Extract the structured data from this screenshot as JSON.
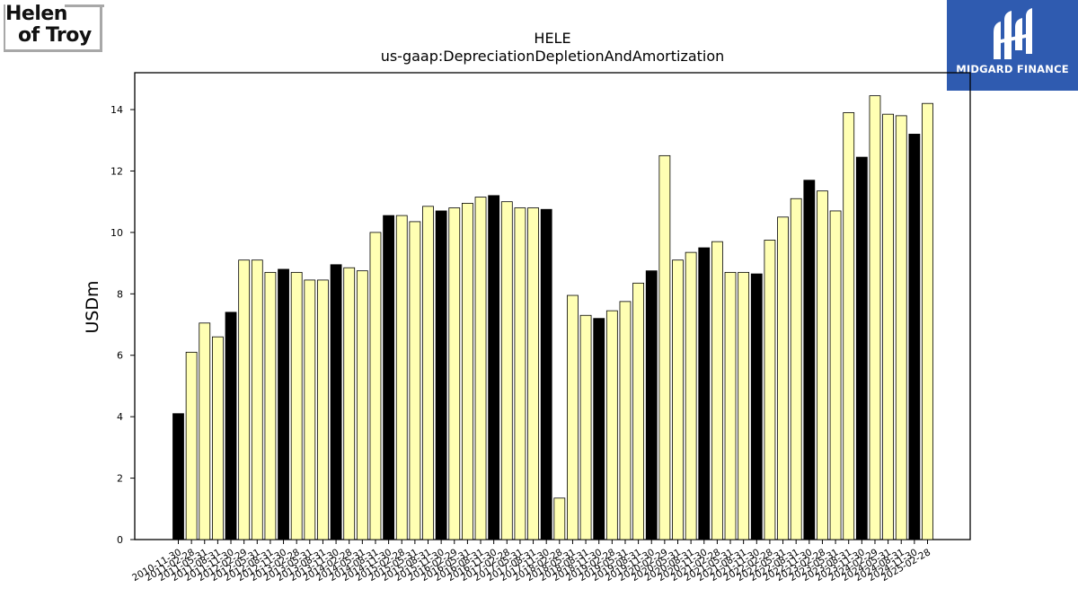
{
  "logos": {
    "left_line1": "Helen",
    "left_line2": "of Troy",
    "right_brand": "MIDGARD FINANCE"
  },
  "chart_data": {
    "type": "bar",
    "title": "HELE",
    "subtitle": "us-gaap:DepreciationDepletionAndAmortization",
    "xlabel": "",
    "ylabel": "USDm",
    "ylim": [
      0,
      15.2
    ],
    "yticks": [
      0,
      2,
      4,
      6,
      8,
      10,
      12,
      14
    ],
    "grid": false,
    "legend": "none",
    "colors": {
      "annual": "#000000",
      "quarterly": "#ffffb3",
      "edge": "#000000"
    },
    "categories": [
      "2010-11-30",
      "2011-02-28",
      "2011-05-31",
      "2011-08-31",
      "2011-11-30",
      "2012-02-29",
      "2012-05-31",
      "2012-08-31",
      "2012-11-30",
      "2013-02-28",
      "2013-05-31",
      "2013-08-31",
      "2013-11-30",
      "2014-02-28",
      "2014-05-31",
      "2014-08-31",
      "2014-11-30",
      "2015-02-28",
      "2015-05-31",
      "2015-08-31",
      "2015-11-30",
      "2016-02-29",
      "2016-05-31",
      "2016-08-31",
      "2016-11-30",
      "2017-02-28",
      "2017-05-31",
      "2017-08-31",
      "2017-11-30",
      "2018-02-28",
      "2018-05-31",
      "2018-08-31",
      "2018-11-30",
      "2019-02-28",
      "2019-05-31",
      "2019-08-31",
      "2019-11-30",
      "2020-02-29",
      "2020-05-31",
      "2020-08-31",
      "2020-11-30",
      "2021-02-28",
      "2021-05-31",
      "2021-08-31",
      "2021-11-30",
      "2022-02-28",
      "2022-05-31",
      "2022-08-31",
      "2022-11-30",
      "2023-02-28",
      "2023-05-31",
      "2023-08-31",
      "2023-11-30",
      "2024-02-29",
      "2024-05-31",
      "2024-08-31",
      "2024-11-30",
      "2025-02-28"
    ],
    "values": [
      4.1,
      6.1,
      7.05,
      6.6,
      7.4,
      9.1,
      9.1,
      8.7,
      8.8,
      8.7,
      8.45,
      8.45,
      8.95,
      8.85,
      8.75,
      10.0,
      10.55,
      10.55,
      10.35,
      10.85,
      10.7,
      10.8,
      10.95,
      11.15,
      11.2,
      11.0,
      10.8,
      10.8,
      10.75,
      1.35,
      7.95,
      7.3,
      7.2,
      7.45,
      7.75,
      8.35,
      8.75,
      12.5,
      9.1,
      9.35,
      9.5,
      9.7,
      8.7,
      8.7,
      8.65,
      9.75,
      10.5,
      11.1,
      11.7,
      11.35,
      10.7,
      13.9,
      12.45,
      14.45,
      13.85,
      13.8,
      13.2,
      14.2
    ],
    "bar_kind": [
      "annual",
      "quarterly",
      "quarterly",
      "quarterly",
      "annual",
      "quarterly",
      "quarterly",
      "quarterly",
      "annual",
      "quarterly",
      "quarterly",
      "quarterly",
      "annual",
      "quarterly",
      "quarterly",
      "quarterly",
      "annual",
      "quarterly",
      "quarterly",
      "quarterly",
      "annual",
      "quarterly",
      "quarterly",
      "quarterly",
      "annual",
      "quarterly",
      "quarterly",
      "quarterly",
      "annual",
      "quarterly",
      "quarterly",
      "quarterly",
      "annual",
      "quarterly",
      "quarterly",
      "quarterly",
      "annual",
      "quarterly",
      "quarterly",
      "quarterly",
      "annual",
      "quarterly",
      "quarterly",
      "quarterly",
      "annual",
      "quarterly",
      "quarterly",
      "quarterly",
      "annual",
      "quarterly",
      "quarterly",
      "quarterly",
      "annual",
      "quarterly",
      "quarterly",
      "quarterly",
      "annual",
      "quarterly"
    ]
  }
}
